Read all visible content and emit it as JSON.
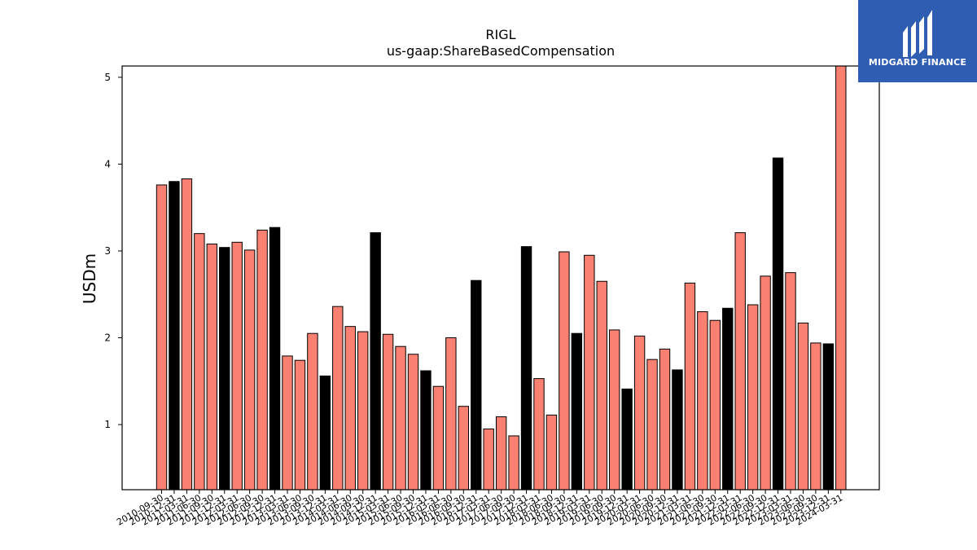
{
  "brand": {
    "name": "MIDGARD FINANCE",
    "logo_bg": "#2f5db1"
  },
  "chart_data": {
    "type": "bar",
    "title": "RIGL",
    "subtitle": "us-gaap:ShareBasedCompensation",
    "xlabel": "",
    "ylabel": "USDm",
    "ylim": [
      0.25,
      5.13
    ],
    "yticks": [
      1,
      2,
      3,
      4,
      5
    ],
    "grid": false,
    "colors": {
      "q4": "#000000",
      "other": "#fa8072",
      "edge": "#000000"
    },
    "categories": [
      "2010-09-30",
      "2010-12-31",
      "2011-03-31",
      "2011-06-30",
      "2011-09-30",
      "2011-12-31",
      "2012-03-31",
      "2012-06-30",
      "2012-09-30",
      "2012-12-31",
      "2013-03-31",
      "2013-06-30",
      "2013-09-30",
      "2013-12-31",
      "2014-03-31",
      "2014-06-30",
      "2014-09-30",
      "2014-12-31",
      "2015-03-31",
      "2015-06-30",
      "2015-09-30",
      "2015-12-31",
      "2016-03-31",
      "2016-06-30",
      "2016-09-30",
      "2016-12-31",
      "2017-03-31",
      "2017-06-30",
      "2017-09-30",
      "2017-12-31",
      "2018-03-31",
      "2018-06-30",
      "2018-09-30",
      "2018-12-31",
      "2019-03-31",
      "2019-06-30",
      "2019-09-30",
      "2019-12-31",
      "2020-03-31",
      "2020-06-30",
      "2020-09-30",
      "2020-12-31",
      "2021-03-31",
      "2021-06-30",
      "2021-09-30",
      "2021-12-31",
      "2022-03-31",
      "2022-06-30",
      "2022-09-30",
      "2022-12-31",
      "2023-03-31",
      "2023-06-30",
      "2023-09-30",
      "2023-12-31",
      "2024-03-31"
    ],
    "values": [
      3.76,
      3.8,
      3.83,
      3.2,
      3.08,
      3.04,
      3.1,
      3.01,
      3.24,
      3.27,
      1.79,
      1.74,
      2.05,
      1.56,
      2.36,
      2.13,
      2.07,
      3.21,
      2.04,
      1.9,
      1.81,
      1.62,
      1.44,
      2.0,
      1.21,
      2.66,
      0.95,
      1.09,
      0.87,
      3.05,
      1.53,
      1.11,
      2.99,
      2.05,
      2.95,
      2.65,
      2.09,
      1.41,
      2.02,
      1.75,
      1.87,
      1.63,
      2.63,
      2.3,
      2.2,
      2.34,
      3.21,
      2.38,
      2.71,
      4.07,
      2.75,
      2.17,
      1.94,
      1.93,
      5.13
    ]
  }
}
